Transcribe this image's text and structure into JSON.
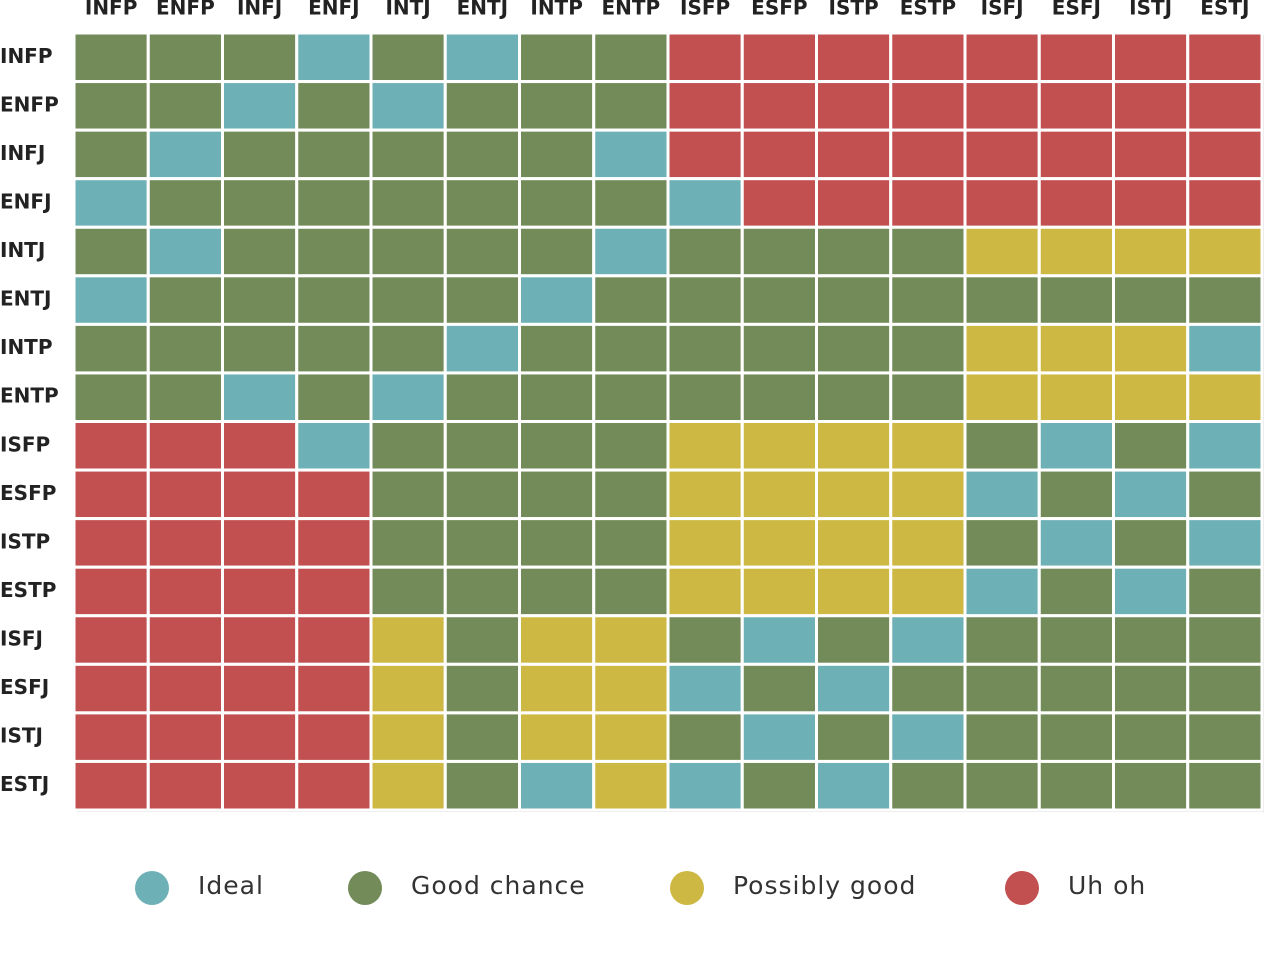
{
  "chart_data": {
    "type": "heatmap",
    "x_categories": [
      "INFP",
      "ENFP",
      "INFJ",
      "ENFJ",
      "INTJ",
      "ENTJ",
      "INTP",
      "ENTP",
      "ISFP",
      "ESFP",
      "ISTP",
      "ESTP",
      "ISFJ",
      "ESFJ",
      "ISTJ",
      "ESTJ"
    ],
    "y_categories": [
      "INFP",
      "ENFP",
      "INFJ",
      "ENFJ",
      "INTJ",
      "ENTJ",
      "INTP",
      "ENTP",
      "ISFP",
      "ESFP",
      "ISTP",
      "ESTP",
      "ISFJ",
      "ESFJ",
      "ISTJ",
      "ESTJ"
    ],
    "legend": [
      {
        "name": "Ideal",
        "color": "#6db1b6"
      },
      {
        "name": "Good chance",
        "color": "#738b58"
      },
      {
        "name": "Possibly good",
        "color": "#cdb843"
      },
      {
        "name": "Uh oh",
        "color": "#c25050"
      }
    ],
    "values": [
      [
        1,
        1,
        1,
        0,
        1,
        0,
        1,
        1,
        3,
        3,
        3,
        3,
        3,
        3,
        3,
        3
      ],
      [
        1,
        1,
        0,
        1,
        0,
        1,
        1,
        1,
        3,
        3,
        3,
        3,
        3,
        3,
        3,
        3
      ],
      [
        1,
        0,
        1,
        1,
        1,
        1,
        1,
        0,
        3,
        3,
        3,
        3,
        3,
        3,
        3,
        3
      ],
      [
        0,
        1,
        1,
        1,
        1,
        1,
        1,
        1,
        0,
        3,
        3,
        3,
        3,
        3,
        3,
        3
      ],
      [
        1,
        0,
        1,
        1,
        1,
        1,
        1,
        0,
        1,
        1,
        1,
        1,
        2,
        2,
        2,
        2
      ],
      [
        0,
        1,
        1,
        1,
        1,
        1,
        0,
        1,
        1,
        1,
        1,
        1,
        1,
        1,
        1,
        1
      ],
      [
        1,
        1,
        1,
        1,
        1,
        0,
        1,
        1,
        1,
        1,
        1,
        1,
        2,
        2,
        2,
        0
      ],
      [
        1,
        1,
        0,
        1,
        0,
        1,
        1,
        1,
        1,
        1,
        1,
        1,
        2,
        2,
        2,
        2
      ],
      [
        3,
        3,
        3,
        0,
        1,
        1,
        1,
        1,
        2,
        2,
        2,
        2,
        1,
        0,
        1,
        0
      ],
      [
        3,
        3,
        3,
        3,
        1,
        1,
        1,
        1,
        2,
        2,
        2,
        2,
        0,
        1,
        0,
        1
      ],
      [
        3,
        3,
        3,
        3,
        1,
        1,
        1,
        1,
        2,
        2,
        2,
        2,
        1,
        0,
        1,
        0
      ],
      [
        3,
        3,
        3,
        3,
        1,
        1,
        1,
        1,
        2,
        2,
        2,
        2,
        0,
        1,
        0,
        1
      ],
      [
        3,
        3,
        3,
        3,
        2,
        1,
        2,
        2,
        1,
        0,
        1,
        0,
        1,
        1,
        1,
        1
      ],
      [
        3,
        3,
        3,
        3,
        2,
        1,
        2,
        2,
        0,
        1,
        0,
        1,
        1,
        1,
        1,
        1
      ],
      [
        3,
        3,
        3,
        3,
        2,
        1,
        2,
        2,
        1,
        0,
        1,
        0,
        1,
        1,
        1,
        1
      ],
      [
        3,
        3,
        3,
        3,
        2,
        1,
        0,
        2,
        0,
        1,
        0,
        1,
        1,
        1,
        1,
        1
      ]
    ]
  }
}
